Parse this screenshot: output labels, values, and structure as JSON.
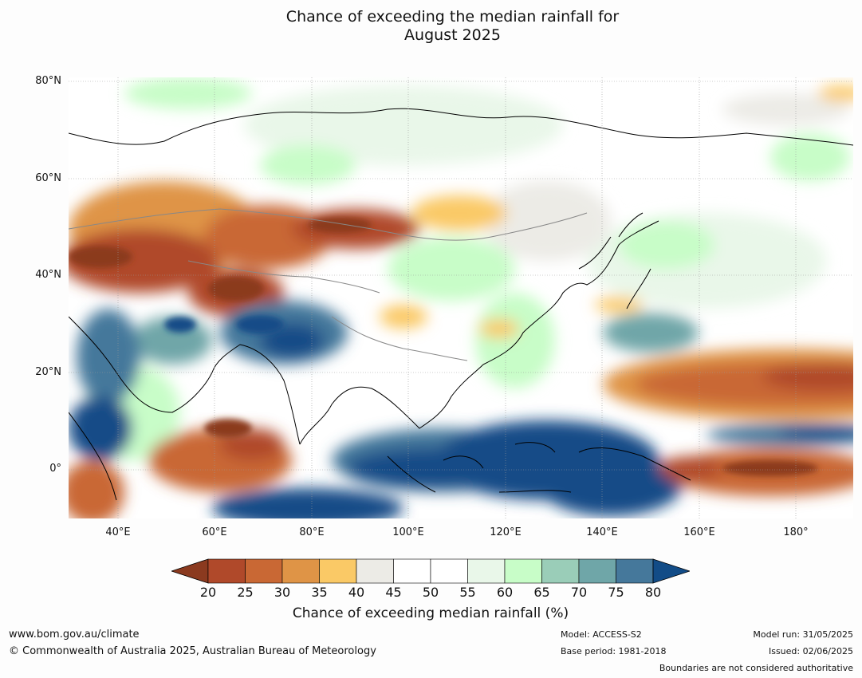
{
  "title": "Chance of exceeding the median rainfall for\nAugust 2025",
  "map": {
    "lat_labels": [
      "80°N",
      "60°N",
      "40°N",
      "20°N",
      "0°"
    ],
    "lon_labels": [
      "40°E",
      "60°E",
      "80°E",
      "100°E",
      "120°E",
      "140°E",
      "160°E",
      "180°"
    ]
  },
  "colorbar": {
    "ticks": [
      "20",
      "25",
      "30",
      "35",
      "40",
      "45",
      "50",
      "55",
      "60",
      "65",
      "70",
      "75",
      "80"
    ],
    "label": "Chance of exceeding median rainfall (%)",
    "colors": [
      "#8b3a1f",
      "#b0492a",
      "#c96834",
      "#df9446",
      "#fac966",
      "#ecebe6",
      "#ffffff",
      "#ffffff",
      "#e9f7e9",
      "#c8fdc8",
      "#9acdb8",
      "#6fa6a8",
      "#45789b",
      "#124c87"
    ]
  },
  "footer": {
    "website": "www.bom.gov.au/climate",
    "copyright": "© Commonwealth of Australia 2025, Australian Bureau of Meteorology",
    "model": "Model: ACCESS-S2",
    "base_period": "Base period: 1981-2018",
    "model_run": "Model run: 31/05/2025",
    "issued": "Issued: 02/06/2025",
    "boundaries": "Boundaries are not considered authoritative"
  }
}
